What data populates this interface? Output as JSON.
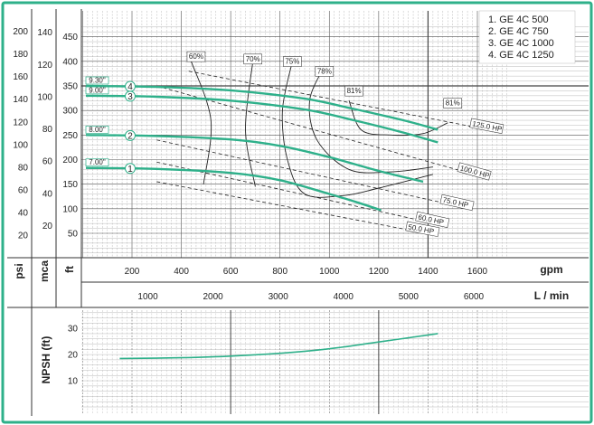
{
  "chart_data": {
    "type": "line",
    "colors": {
      "frame": "#2eb08a",
      "curve": "#2eb08a",
      "grid": "#9a9a9a",
      "grid_major": "#555555",
      "efficiency": "#222222",
      "hp": "#222222"
    },
    "legend": {
      "position": "top-right",
      "items": [
        "1. GE 4C 500",
        "2. GE 4C 750",
        "3. GE 4C 1000",
        "4. GE 4C 1250"
      ]
    },
    "head_axis": {
      "psi_label": "psi",
      "mca_label": "mca",
      "ft_label": "ft",
      "psi_ticks": [
        "200",
        "180",
        "160",
        "140",
        "120",
        "100",
        "80",
        "60",
        "40",
        "20"
      ],
      "mca_ticks": [
        "140",
        "120",
        "100",
        "80",
        "60",
        "40",
        "20"
      ],
      "ft_ticks": [
        "450",
        "400",
        "350",
        "300",
        "250",
        "200",
        "150",
        "100",
        "50"
      ],
      "ylim_ft": [
        0,
        470
      ]
    },
    "flow_axis": {
      "gpm_label": "gpm",
      "gpm_ticks": [
        "200",
        "400",
        "600",
        "800",
        "1000",
        "1200",
        "1400",
        "1600"
      ],
      "lmin_label": "L / min",
      "lmin_ticks": [
        "1000",
        "2000",
        "3000",
        "4000",
        "5000",
        "6000"
      ],
      "xlim_gpm": [
        0,
        1720
      ]
    },
    "series": [
      {
        "name": "1",
        "diameter": "7.00\"",
        "x": [
          0,
          300,
          600,
          800,
          1000,
          1100,
          1210
        ],
        "y": [
          183,
          181,
          173,
          158,
          130,
          115,
          97
        ]
      },
      {
        "name": "2",
        "diameter": "8.00\"",
        "x": [
          0,
          300,
          600,
          800,
          1000,
          1200,
          1380
        ],
        "y": [
          250,
          248,
          241,
          228,
          205,
          177,
          155
        ]
      },
      {
        "name": "3",
        "diameter": "9.00\"",
        "x": [
          0,
          300,
          600,
          900,
          1100,
          1300,
          1440
        ],
        "y": [
          330,
          328,
          320,
          302,
          280,
          255,
          235
        ]
      },
      {
        "name": "4",
        "diameter": "9.30\"",
        "x": [
          0,
          300,
          600,
          900,
          1100,
          1300,
          1440
        ],
        "y": [
          350,
          348,
          341,
          324,
          303,
          280,
          261
        ]
      }
    ],
    "efficiency_lines": [
      {
        "label": "60%",
        "x": [
          440,
          520,
          490
        ],
        "y": [
          400,
          280,
          150
        ]
      },
      {
        "label": "70%",
        "x": [
          690,
          660,
          700
        ],
        "y": [
          400,
          260,
          145
        ]
      },
      {
        "label": "75%",
        "x": [
          850,
          810,
          830,
          900,
          1060,
          1200,
          1420
        ],
        "y": [
          400,
          300,
          200,
          130,
          127,
          142,
          170
        ]
      },
      {
        "label": "78%",
        "x": [
          980,
          920,
          950,
          1080,
          1250,
          1420
        ],
        "y": [
          390,
          320,
          240,
          180,
          175,
          185
        ]
      },
      {
        "label": "81%",
        "x": [
          1080,
          1130,
          1250,
          1380,
          1480
        ],
        "y": [
          320,
          260,
          250,
          253,
          275
        ]
      }
    ],
    "efficiency_label_positions": {
      "60%": [
        460,
        405
      ],
      "70%": [
        690,
        400
      ],
      "75%": [
        850,
        395
      ],
      "78%": [
        980,
        375
      ],
      "81%": [
        1100,
        335
      ],
      "81%b": [
        1500,
        310
      ]
    },
    "power_lines": [
      {
        "label": "125.0 HP",
        "x": [
          430,
          1600
        ],
        "y": [
          380,
          265
        ]
      },
      {
        "label": "100.0 HP",
        "x": [
          300,
          1550
        ],
        "y": [
          350,
          175
        ]
      },
      {
        "label": "75.0 HP",
        "x": [
          300,
          1480
        ],
        "y": [
          240,
          110
        ]
      },
      {
        "label": "60.0 HP",
        "x": [
          300,
          1380
        ],
        "y": [
          195,
          75
        ]
      },
      {
        "label": "50.0 HP",
        "x": [
          300,
          1340
        ],
        "y": [
          155,
          55
        ]
      }
    ],
    "npsh": {
      "ylabel": "NPSH (ft)",
      "ticks": [
        "30",
        "20",
        "10"
      ],
      "ylim": [
        0,
        36
      ],
      "x": [
        150,
        400,
        600,
        800,
        1000,
        1200,
        1440
      ],
      "y": [
        18.5,
        18.8,
        19.4,
        20.5,
        22.2,
        24.8,
        28
      ]
    }
  }
}
